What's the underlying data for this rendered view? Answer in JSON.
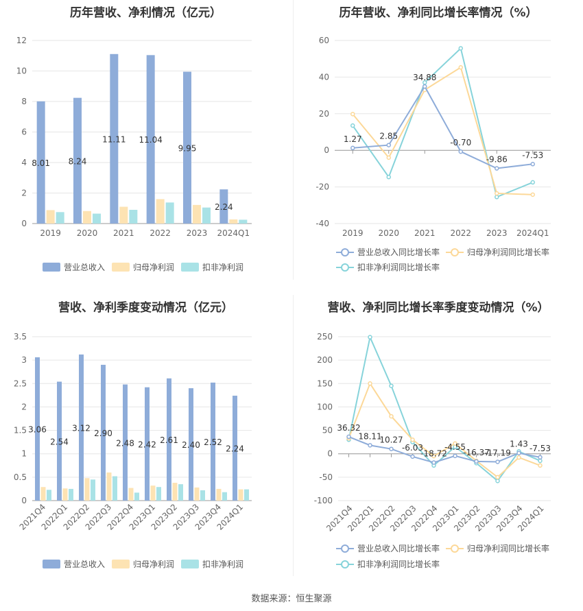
{
  "source": "数据来源：恒生聚源",
  "colors": {
    "revenue": "#8eacd9",
    "parent": "#fde3b3",
    "deducted": "#a9e2e6",
    "rev_line": "#8eacd9",
    "parent_line": "#fcd898",
    "ded_line": "#86d3da"
  },
  "chart_data": [
    {
      "type": "bar",
      "title": "历年营收、净利情况（亿元）",
      "categories": [
        "2019",
        "2020",
        "2021",
        "2022",
        "2023",
        "2024Q1"
      ],
      "ylim": [
        0,
        12
      ],
      "yticks": [
        0,
        2,
        4,
        6,
        8,
        10,
        12
      ],
      "series": [
        {
          "name": "营业总收入",
          "values": [
            8.01,
            8.24,
            11.11,
            11.04,
            9.95,
            2.24
          ],
          "labels": [
            "8.01",
            "8.24",
            "11.11",
            "11.04",
            "9.95",
            "2.24"
          ]
        },
        {
          "name": "归母净利润",
          "values": [
            0.88,
            0.82,
            1.1,
            1.6,
            1.22,
            0.27
          ]
        },
        {
          "name": "扣非净利润",
          "values": [
            0.75,
            0.65,
            0.9,
            1.38,
            1.05,
            0.25
          ]
        }
      ],
      "grid": true,
      "legend": "bottom"
    },
    {
      "type": "line",
      "title": "历年营收、净利同比增长率情况（%）",
      "categories": [
        "2019",
        "2020",
        "2021",
        "2022",
        "2023",
        "2024Q1"
      ],
      "ylim": [
        -40,
        60
      ],
      "yticks": [
        -40,
        -20,
        0,
        20,
        40,
        60
      ],
      "series": [
        {
          "name": "营业总收入同比增长率",
          "values": [
            1.27,
            2.85,
            34.88,
            -0.7,
            -9.86,
            -7.53
          ],
          "labels": [
            "1.27",
            "2.85",
            "34.88",
            "-0.70",
            "-9.86",
            "-7.53"
          ]
        },
        {
          "name": "归母净利润同比增长率",
          "values": [
            19.8,
            -4.0,
            33.0,
            45.3,
            -23.5,
            -24.2
          ]
        },
        {
          "name": "扣非净利润同比增长率",
          "values": [
            13.5,
            -14.6,
            37.0,
            55.7,
            -25.5,
            -17.5
          ]
        }
      ],
      "grid": true,
      "legend": "bottom"
    },
    {
      "type": "bar",
      "title": "营收、净利季度变动情况（亿元）",
      "categories": [
        "2021Q4",
        "2022Q1",
        "2022Q2",
        "2022Q3",
        "2022Q4",
        "2023Q1",
        "2023Q2",
        "2023Q3",
        "2023Q4",
        "2024Q1"
      ],
      "ylim": [
        0,
        3.5
      ],
      "yticks": [
        0,
        0.5,
        1,
        1.5,
        2,
        2.5,
        3,
        3.5
      ],
      "series": [
        {
          "name": "营业总收入",
          "values": [
            3.06,
            2.54,
            3.12,
            2.9,
            2.48,
            2.42,
            2.61,
            2.4,
            2.52,
            2.24
          ],
          "labels": [
            "3.06",
            "2.54",
            "3.12",
            "2.90",
            "2.48",
            "2.42",
            "2.61",
            "2.40",
            "2.52",
            "2.24"
          ]
        },
        {
          "name": "归母净利润",
          "values": [
            0.29,
            0.26,
            0.48,
            0.6,
            0.27,
            0.32,
            0.38,
            0.28,
            0.25,
            0.24
          ]
        },
        {
          "name": "扣非净利润",
          "values": [
            0.23,
            0.25,
            0.45,
            0.52,
            0.17,
            0.29,
            0.35,
            0.22,
            0.18,
            0.24
          ]
        }
      ],
      "grid": true,
      "legend": "bottom"
    },
    {
      "type": "line",
      "title": "营收、净利同比增长率季度变动情况（%）",
      "categories": [
        "2021Q4",
        "2022Q1",
        "2022Q2",
        "2022Q3",
        "2022Q4",
        "2023Q1",
        "2023Q2",
        "2023Q3",
        "2023Q4",
        "2024Q1"
      ],
      "ylim": [
        -100,
        250
      ],
      "yticks": [
        -100,
        -50,
        0,
        50,
        100,
        150,
        200,
        250
      ],
      "series": [
        {
          "name": "营业总收入同比增长率",
          "values": [
            36.32,
            18.11,
            10.27,
            -6.03,
            -18.72,
            -4.55,
            -16.37,
            -17.19,
            1.43,
            -7.53
          ],
          "labels": [
            "36.32",
            "18.11",
            "10.27",
            "-6.03",
            "-18.72",
            "-4.55",
            "-16.37",
            "-17.19",
            "1.43",
            "-7.53"
          ]
        },
        {
          "name": "归母净利润同比增长率",
          "values": [
            33,
            150,
            80,
            30,
            -5,
            22,
            -15,
            -50,
            -8,
            -25
          ]
        },
        {
          "name": "扣非净利润同比增长率",
          "values": [
            30,
            249,
            145,
            25,
            -25,
            15,
            -20,
            -58,
            5,
            -15
          ]
        }
      ],
      "grid": true,
      "legend": "bottom"
    }
  ]
}
